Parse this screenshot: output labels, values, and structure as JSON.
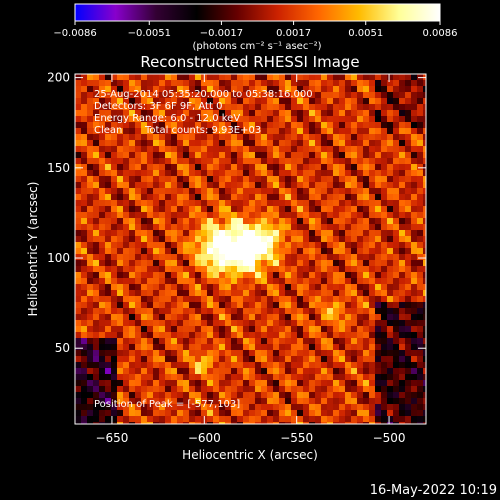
{
  "chart_data": {
    "type": "heatmap",
    "title": "Reconstructed RHESSI Image",
    "xlabel": "Heliocentric X (arcsec)",
    "ylabel": "Heliocentric Y (arcsec)",
    "xlim": [
      -670,
      -480
    ],
    "ylim": [
      8,
      202
    ],
    "x_ticks": [
      -650,
      -600,
      -550,
      -500
    ],
    "y_ticks": [
      50,
      100,
      150,
      200
    ],
    "x_tick_labels": [
      "−650",
      "−600",
      "−550",
      "−500"
    ],
    "y_tick_labels": [
      "50",
      "100",
      "150",
      "200"
    ],
    "colorbar": {
      "range": [
        -0.0086,
        0.0086
      ],
      "ticks": [
        -0.0086,
        -0.0051,
        -0.0017,
        0.0017,
        0.0051,
        0.0086
      ],
      "tick_labels": [
        "−0.0086",
        "−0.0051",
        "−0.0017",
        "0.0017",
        "0.0051",
        "0.0086"
      ],
      "units": "(photons cm⁻² s⁻¹ asec⁻²)"
    },
    "colormap": [
      "#0000ff",
      "#8800cc",
      "#330033",
      "#000000",
      "#660000",
      "#cc2200",
      "#ff6600",
      "#ffbb00",
      "#ffff99",
      "#ffffff"
    ],
    "peak": [
      -577,
      103
    ],
    "sources": [
      {
        "x": -590,
        "y": 106,
        "amp": 1.0,
        "sigma": 10
      },
      {
        "x": -575,
        "y": 105,
        "amp": 0.9,
        "sigma": 9
      },
      {
        "x": -565,
        "y": 112,
        "amp": 0.45,
        "sigma": 6
      },
      {
        "x": -600,
        "y": 42,
        "amp": 0.45,
        "sigma": 5
      },
      {
        "x": -530,
        "y": 70,
        "amp": 0.35,
        "sigma": 6
      }
    ]
  },
  "annotations": {
    "time_range": "25-Aug-2014 05:35:20.000 to 05:38:16.000",
    "detectors": "Detectors: 3F 6F 9F, Att 0",
    "energy": "Energy Range: 6.0 - 12.0 keV",
    "clean_label": "Clean",
    "counts": "Total counts: 9.93E+03",
    "peak_label": "Position of Peak = [-577,103]"
  },
  "footer": {
    "timestamp": "16-May-2022 10:19"
  }
}
